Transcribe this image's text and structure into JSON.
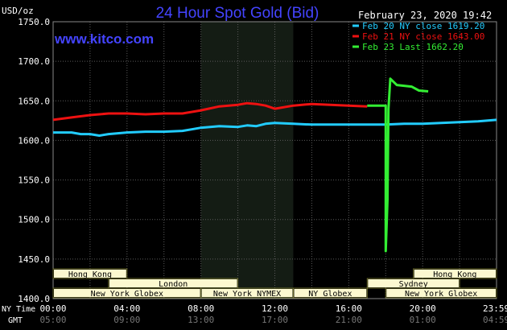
{
  "chart_data": {
    "type": "line",
    "title": "24 Hour Spot Gold (Bid)",
    "site": "www.kitco.com",
    "date_stamp": "February 23, 2020 19:42",
    "y_unit": "USD/oz",
    "ylim": [
      1400,
      1750
    ],
    "y_ticks": [
      "1750.0",
      "1700.0",
      "1650.0",
      "1600.0",
      "1550.0",
      "1500.0",
      "1450.0",
      "1400.0"
    ],
    "y_tick_values": [
      1750,
      1700,
      1650,
      1600,
      1550,
      1500,
      1450,
      1400
    ],
    "x_range_hours": [
      0,
      24
    ],
    "x_row_label_ny": "NY Time",
    "x_row_label_gmt": "GMT",
    "x_ticks_ny": [
      "00:00",
      "04:00",
      "08:00",
      "12:00",
      "16:00",
      "20:00",
      "23:59"
    ],
    "x_ticks_gmt": [
      "05:00",
      "09:00",
      "13:00",
      "17:00",
      "21:00",
      "01:00",
      "04:59"
    ],
    "x_tick_hours": [
      0,
      4,
      8,
      12,
      16,
      20,
      23.98
    ],
    "shaded_hours": [
      8,
      13
    ],
    "grid": true,
    "legend_position": "top-right",
    "colors": {
      "background": "#000000",
      "title": "#4444ff",
      "grid": "#5a5a5a",
      "axis_text": "#ffffff",
      "shade": "#141c14",
      "session_fill": "#fcf8d0",
      "session_text": "#000000",
      "session_border": "#6b6b2a"
    },
    "series": [
      {
        "name": "Feb 20 NY close 1619.20",
        "color": "#22ccff",
        "points": [
          [
            0,
            1610
          ],
          [
            1,
            1610
          ],
          [
            1.5,
            1608
          ],
          [
            2,
            1608
          ],
          [
            2.5,
            1606
          ],
          [
            3,
            1608
          ],
          [
            3.5,
            1609
          ],
          [
            4,
            1610
          ],
          [
            5,
            1611
          ],
          [
            6,
            1611
          ],
          [
            7,
            1612
          ],
          [
            7.5,
            1614
          ],
          [
            8,
            1616
          ],
          [
            9,
            1618
          ],
          [
            10,
            1617
          ],
          [
            10.5,
            1619
          ],
          [
            11,
            1618
          ],
          [
            11.5,
            1621
          ],
          [
            12,
            1622
          ],
          [
            13,
            1621
          ],
          [
            14,
            1620
          ],
          [
            15,
            1620
          ],
          [
            16,
            1620
          ],
          [
            17,
            1620
          ],
          [
            18,
            1620
          ],
          [
            19,
            1621
          ],
          [
            20,
            1621
          ],
          [
            21,
            1622
          ],
          [
            22,
            1623
          ],
          [
            23,
            1624
          ],
          [
            24,
            1626
          ]
        ]
      },
      {
        "name": "Feb 21 NY close 1643.00",
        "color": "#ee1111",
        "points": [
          [
            0,
            1626
          ],
          [
            1,
            1629
          ],
          [
            2,
            1632
          ],
          [
            3,
            1634
          ],
          [
            4,
            1634
          ],
          [
            5,
            1633
          ],
          [
            6,
            1634
          ],
          [
            7,
            1634
          ],
          [
            8,
            1638
          ],
          [
            9,
            1643
          ],
          [
            10,
            1645
          ],
          [
            10.5,
            1647
          ],
          [
            11,
            1646
          ],
          [
            11.5,
            1644
          ],
          [
            12,
            1640
          ],
          [
            13,
            1644
          ],
          [
            14,
            1646
          ],
          [
            15,
            1645
          ],
          [
            16,
            1644
          ],
          [
            17,
            1643
          ]
        ]
      },
      {
        "name": "Feb 23 Last 1662.20",
        "color": "#33ee33",
        "points": [
          [
            17,
            1644
          ],
          [
            18,
            1644
          ],
          [
            18,
            1460
          ],
          [
            18.1,
            1525
          ],
          [
            18.15,
            1640
          ],
          [
            18.25,
            1678
          ],
          [
            18.6,
            1670
          ],
          [
            19,
            1669
          ],
          [
            19.4,
            1668
          ],
          [
            19.8,
            1663
          ],
          [
            20.3,
            1662
          ]
        ]
      }
    ],
    "sessions": [
      {
        "label": "Hong Kong",
        "row": 0,
        "start": 0,
        "end": 4
      },
      {
        "label": "London",
        "row": 1,
        "start": 3,
        "end": 10
      },
      {
        "label": "New York Globex",
        "row": 2,
        "start": 0,
        "end": 8
      },
      {
        "label": "New York NYMEX",
        "row": 2,
        "start": 8,
        "end": 13
      },
      {
        "label": "NY Globex",
        "row": 2,
        "start": 13,
        "end": 17
      },
      {
        "label": "Hong Kong",
        "row": 0,
        "start": 19.5,
        "end": 24
      },
      {
        "label": "Sydney",
        "row": 1,
        "start": 17,
        "end": 22
      },
      {
        "label": "New York Globex",
        "row": 2,
        "start": 18,
        "end": 24
      }
    ]
  }
}
